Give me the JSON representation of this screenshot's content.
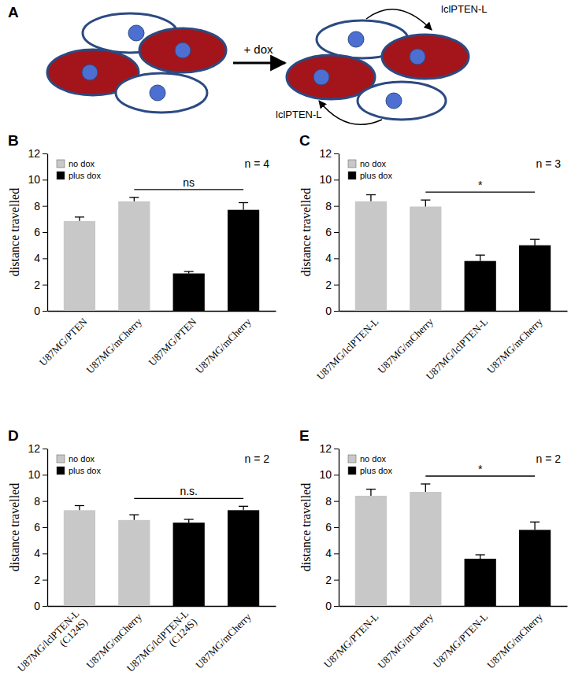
{
  "diagram": {
    "label": "A",
    "treatment": "+ dox",
    "secreted": [
      "lclPTEN-L",
      "lclPTEN-L"
    ]
  },
  "chart_data": [
    {
      "type": "bar",
      "title": "B",
      "y_label": "distance travelled",
      "categories": [
        "U87MG/PTEN",
        "U87MG/mCherry",
        "U87MG/PTEN",
        "U87MG/mCherry"
      ],
      "series": [
        {
          "name": "no dox",
          "color": "#c8c8c8",
          "values": [
            6.85,
            8.35,
            null,
            null
          ],
          "errors": [
            0.3,
            0.3,
            null,
            null
          ]
        },
        {
          "name": "plus dox",
          "color": "#000000",
          "values": [
            null,
            null,
            2.85,
            7.7
          ],
          "errors": [
            null,
            null,
            0.15,
            0.55
          ]
        }
      ],
      "ylim": [
        0,
        12
      ],
      "yticks": [
        0,
        2,
        4,
        6,
        8,
        10,
        12
      ],
      "legend": "top-left",
      "annotations": {
        "n": "n = 4",
        "significance": "ns"
      }
    },
    {
      "type": "bar",
      "title": "C",
      "y_label": "distance travelled",
      "categories": [
        "U87MG/lclPTEN-L",
        "U87MG/mCherry",
        "U87MG/lclPTEN-L",
        "U87MG/mCherry"
      ],
      "series": [
        {
          "name": "no dox",
          "color": "#c8c8c8",
          "values": [
            8.35,
            7.95,
            null,
            null
          ],
          "errors": [
            0.5,
            0.5,
            null,
            null
          ]
        },
        {
          "name": "plus dox",
          "color": "#000000",
          "values": [
            null,
            null,
            3.8,
            5.0
          ],
          "errors": [
            null,
            null,
            0.45,
            0.45
          ]
        }
      ],
      "ylim": [
        0,
        12
      ],
      "yticks": [
        0,
        2,
        4,
        6,
        8,
        10,
        12
      ],
      "legend": "top-left",
      "annotations": {
        "n": "n = 3",
        "significance": "*"
      }
    },
    {
      "type": "bar",
      "title": "D",
      "y_label": "distance travelled",
      "categories": [
        "U87MG/lclPTEN-L\n(C124S)",
        "U87MG/mCherry",
        "U87MG/lclPTEN-L\n(C124S)",
        "U87MG/mCherry"
      ],
      "series": [
        {
          "name": "no dox",
          "color": "#c8c8c8",
          "values": [
            7.3,
            6.55,
            null,
            null
          ],
          "errors": [
            0.35,
            0.4,
            null,
            null
          ]
        },
        {
          "name": "plus dox",
          "color": "#000000",
          "values": [
            null,
            null,
            6.35,
            7.3
          ],
          "errors": [
            null,
            null,
            0.25,
            0.3
          ]
        }
      ],
      "ylim": [
        0,
        12
      ],
      "yticks": [
        0,
        2,
        4,
        6,
        8,
        10,
        12
      ],
      "legend": "top-left",
      "annotations": {
        "n": "n = 2",
        "significance": "n.s."
      }
    },
    {
      "type": "bar",
      "title": "E",
      "y_label": "distance travelled",
      "categories": [
        "U87MG/PTEN-L",
        "U87MG/mCherry",
        "U87MG/PTEN-L",
        "U87MG/mCherry"
      ],
      "series": [
        {
          "name": "no dox",
          "color": "#c8c8c8",
          "values": [
            8.4,
            8.7,
            null,
            null
          ],
          "errors": [
            0.5,
            0.6,
            null,
            null
          ]
        },
        {
          "name": "plus dox",
          "color": "#000000",
          "values": [
            null,
            null,
            3.6,
            5.8
          ],
          "errors": [
            null,
            null,
            0.3,
            0.6
          ]
        }
      ],
      "ylim": [
        0,
        12
      ],
      "yticks": [
        0,
        2,
        4,
        6,
        8,
        10,
        12
      ],
      "legend": "top-left",
      "annotations": {
        "n": "n = 2",
        "significance": "*"
      }
    }
  ]
}
